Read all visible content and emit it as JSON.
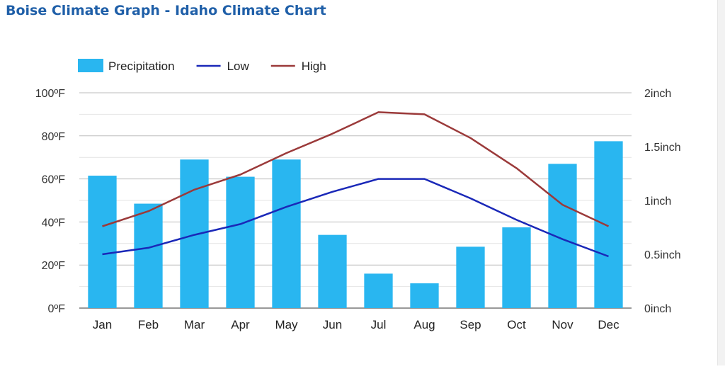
{
  "page": {
    "title": "Boise Climate Graph - Idaho Climate Chart"
  },
  "chart_data": {
    "type": "bar",
    "categories": [
      "Jan",
      "Feb",
      "Mar",
      "Apr",
      "May",
      "Jun",
      "Jul",
      "Aug",
      "Sep",
      "Oct",
      "Nov",
      "Dec"
    ],
    "series": [
      {
        "name": "Precipitation",
        "type": "bar",
        "axis": "right",
        "unit": "inch",
        "color": "#29b6f0",
        "values": [
          1.23,
          0.97,
          1.38,
          1.22,
          1.38,
          0.68,
          0.32,
          0.23,
          0.57,
          0.75,
          1.34,
          1.55
        ]
      },
      {
        "name": "Low",
        "type": "line",
        "axis": "left",
        "unit": "°F",
        "color": "#1a28b8",
        "values": [
          25,
          28,
          34,
          39,
          47,
          54,
          60,
          60,
          51,
          41,
          32,
          24
        ]
      },
      {
        "name": "High",
        "type": "line",
        "axis": "left",
        "unit": "°F",
        "color": "#9b3a3a",
        "values": [
          38,
          45,
          55,
          62,
          72,
          81,
          91,
          90,
          79,
          65,
          48,
          38
        ]
      }
    ],
    "y_left": {
      "ticks": [
        "0ºF",
        "20ºF",
        "40ºF",
        "60ºF",
        "80ºF",
        "100ºF"
      ],
      "min": 0,
      "max": 100
    },
    "y_right": {
      "ticks": [
        "0inch",
        "0.5inch",
        "1inch",
        "1.5inch",
        "2inch"
      ],
      "min": 0,
      "max": 2
    },
    "legend": {
      "position": "top-left"
    },
    "grid": true,
    "minor_grid": true
  }
}
